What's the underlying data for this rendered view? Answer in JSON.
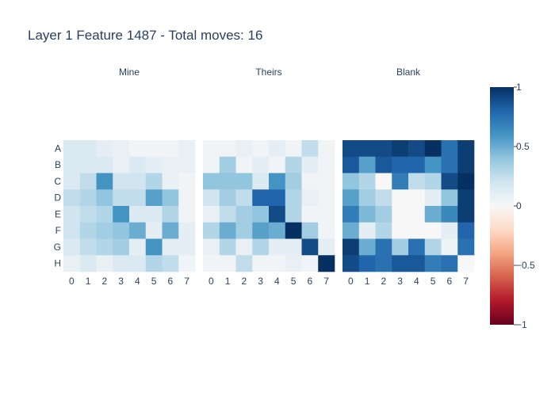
{
  "chart_data": {
    "type": "heatmap",
    "title": "Layer 1 Feature 1487 - Total moves: 16",
    "rows": [
      "A",
      "B",
      "C",
      "D",
      "E",
      "F",
      "G",
      "H"
    ],
    "columns": [
      "0",
      "1",
      "2",
      "3",
      "4",
      "5",
      "6",
      "7"
    ],
    "zlim": [
      -1,
      1
    ],
    "colorscale": "RdBu (red = -1, white = 0, blue = 1)",
    "colorbar": {
      "ticks": [
        1,
        0.5,
        0,
        -0.5,
        -1
      ],
      "tick_labels": [
        "1",
        "0.5",
        "0",
        "−0.5",
        "−1"
      ]
    },
    "panels": [
      {
        "name": "Mine",
        "z": [
          [
            0.15,
            0.15,
            0.1,
            0.08,
            0.03,
            0.03,
            0.03,
            0.08
          ],
          [
            0.15,
            0.15,
            0.15,
            0.08,
            0.15,
            0.1,
            0.08,
            0.08
          ],
          [
            0.15,
            0.25,
            0.6,
            0.2,
            0.2,
            0.3,
            0.08,
            0.03
          ],
          [
            0.25,
            0.3,
            0.4,
            0.25,
            0.25,
            0.55,
            0.4,
            0.03
          ],
          [
            0.2,
            0.25,
            0.3,
            0.6,
            0.15,
            0.15,
            0.3,
            0.03
          ],
          [
            0.2,
            0.3,
            0.35,
            0.4,
            0.5,
            0.1,
            0.5,
            0.1
          ],
          [
            0.15,
            0.25,
            0.3,
            0.35,
            0.1,
            0.6,
            0.1,
            0.1
          ],
          [
            0.08,
            0.15,
            0.08,
            0.15,
            0.15,
            0.3,
            0.25,
            0.03
          ]
        ]
      },
      {
        "name": "Theirs",
        "z": [
          [
            0.03,
            0.03,
            0.08,
            0.03,
            0.1,
            0.03,
            0.25,
            0.03
          ],
          [
            0.03,
            0.35,
            0.03,
            0.1,
            0.03,
            0.3,
            0.1,
            0.03
          ],
          [
            0.4,
            0.4,
            0.4,
            0.15,
            0.6,
            0.35,
            0.03,
            0.03
          ],
          [
            0.2,
            0.35,
            0.25,
            0.8,
            0.8,
            0.3,
            0.08,
            0.03
          ],
          [
            0.08,
            0.25,
            0.35,
            0.4,
            0.9,
            0.3,
            0.03,
            0.03
          ],
          [
            0.3,
            0.5,
            0.35,
            0.55,
            0.5,
            1.0,
            0.35,
            0.03
          ],
          [
            0.08,
            0.3,
            0.08,
            0.3,
            0.1,
            0.1,
            0.9,
            0.1
          ],
          [
            0.03,
            0.03,
            0.25,
            0.03,
            0.03,
            0.08,
            0.03,
            1.0
          ]
        ]
      },
      {
        "name": "Blank",
        "z": [
          [
            0.9,
            0.9,
            0.9,
            0.95,
            0.9,
            1.0,
            0.75,
            0.95
          ],
          [
            0.85,
            0.55,
            0.85,
            0.8,
            0.8,
            0.6,
            0.75,
            0.95
          ],
          [
            0.4,
            0.3,
            0.0,
            0.7,
            0.25,
            0.3,
            0.9,
            1.0
          ],
          [
            0.55,
            0.35,
            0.25,
            0.0,
            0.0,
            0.1,
            0.4,
            0.95
          ],
          [
            0.7,
            0.45,
            0.35,
            0.0,
            0.0,
            0.5,
            0.65,
            0.95
          ],
          [
            0.5,
            0.1,
            0.3,
            0.0,
            0.0,
            0.0,
            0.1,
            0.8
          ],
          [
            0.95,
            0.5,
            0.75,
            0.35,
            0.75,
            0.3,
            0.05,
            0.75
          ],
          [
            0.9,
            0.8,
            0.75,
            0.85,
            0.85,
            0.7,
            0.75,
            0.0
          ]
        ]
      }
    ]
  }
}
